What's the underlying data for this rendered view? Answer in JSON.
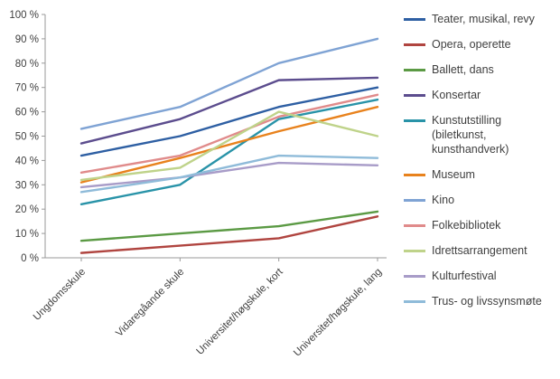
{
  "chart_data": {
    "type": "line",
    "title": "",
    "xlabel": "",
    "ylabel": "",
    "ylim": [
      0,
      100
    ],
    "grid": false,
    "legend_position": "right",
    "yticks": [
      "0 %",
      "10 %",
      "20 %",
      "30 %",
      "40 %",
      "50 %",
      "60 %",
      "70 %",
      "80 %",
      "90 %",
      "100 %"
    ],
    "categories": [
      "Ungdomsskule",
      "Vidaregåande skule",
      "Universitet/høgskule, kort",
      "Universitet/høgskule, lang"
    ],
    "series": [
      {
        "name": "Teater, musikal, revy",
        "color": "#2e5fa3",
        "values": [
          42,
          50,
          62,
          70
        ]
      },
      {
        "name": "Opera, operette",
        "color": "#b04540",
        "values": [
          2,
          5,
          8,
          17
        ]
      },
      {
        "name": "Ballett, dans",
        "color": "#5b9a44",
        "values": [
          7,
          10,
          13,
          19
        ]
      },
      {
        "name": "Konsertar",
        "color": "#5c4d8e",
        "values": [
          47,
          57,
          73,
          74
        ]
      },
      {
        "name": "Kunstutstilling (biletkunst, kunsthandverk)",
        "color": "#2993a8",
        "values": [
          22,
          30,
          57,
          65
        ]
      },
      {
        "name": "Museum",
        "color": "#e8821d",
        "values": [
          31,
          41,
          52,
          62
        ]
      },
      {
        "name": "Kino",
        "color": "#7fa3d4",
        "values": [
          53,
          62,
          80,
          90
        ]
      },
      {
        "name": "Folkebibliotek",
        "color": "#e08b8b",
        "values": [
          35,
          42,
          58,
          67
        ]
      },
      {
        "name": "Idrettsarrangement",
        "color": "#bfd38a",
        "values": [
          32,
          37,
          60,
          50
        ]
      },
      {
        "name": "Kulturfestival",
        "color": "#a89cc8",
        "values": [
          29,
          33,
          39,
          38
        ]
      },
      {
        "name": "Trus- og livssynsmøte",
        "color": "#8fbbd9",
        "values": [
          27,
          33,
          42,
          41
        ]
      }
    ]
  }
}
